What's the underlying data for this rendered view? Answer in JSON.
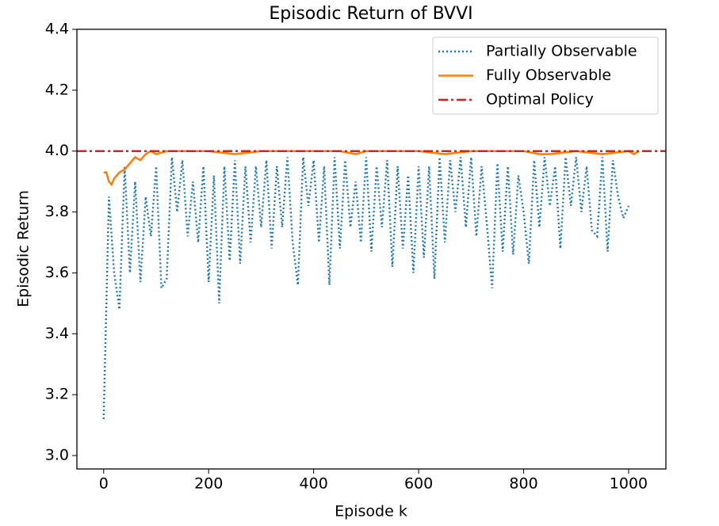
{
  "chart_data": {
    "type": "line",
    "title": "Episodic Return of BVVI",
    "xlabel": "Episode k",
    "ylabel": "Episodic Return",
    "xlim": [
      -51,
      1071
    ],
    "ylim": [
      2.956,
      4.4
    ],
    "xticks": [
      0,
      200,
      400,
      600,
      800,
      1000
    ],
    "yticks": [
      {
        "value": 3,
        "label": "3.0"
      },
      3.2,
      3.4,
      3.6,
      3.8,
      {
        "value": 4,
        "label": "4.0"
      },
      4.2,
      4.4
    ],
    "legend": "upper right",
    "series": [
      {
        "name": "Partially Observable",
        "color": "#1f77b4",
        "linestyle": "dotted",
        "x": [
          0,
          10,
          20,
          30,
          40,
          50,
          60,
          70,
          80,
          90,
          100,
          110,
          120,
          130,
          140,
          150,
          160,
          170,
          180,
          190,
          200,
          210,
          220,
          230,
          240,
          250,
          260,
          270,
          280,
          290,
          300,
          310,
          320,
          330,
          340,
          350,
          360,
          370,
          380,
          390,
          400,
          410,
          420,
          430,
          440,
          450,
          460,
          470,
          480,
          490,
          500,
          510,
          520,
          530,
          540,
          550,
          560,
          570,
          580,
          590,
          600,
          610,
          620,
          630,
          640,
          650,
          660,
          670,
          680,
          690,
          700,
          710,
          720,
          730,
          740,
          750,
          760,
          770,
          780,
          790,
          800,
          810,
          820,
          830,
          840,
          850,
          860,
          870,
          880,
          890,
          900,
          910,
          920,
          930,
          940,
          950,
          960,
          970,
          980,
          990,
          1000
        ],
        "values": [
          3.12,
          3.85,
          3.6,
          3.48,
          3.95,
          3.6,
          3.9,
          3.57,
          3.85,
          3.72,
          3.95,
          3.55,
          3.58,
          3.98,
          3.8,
          3.97,
          3.72,
          3.9,
          3.7,
          3.95,
          3.57,
          3.92,
          3.5,
          3.95,
          3.64,
          3.97,
          3.63,
          3.95,
          3.7,
          3.95,
          3.75,
          3.97,
          3.68,
          3.95,
          3.75,
          3.98,
          3.7,
          3.56,
          3.98,
          3.82,
          3.97,
          3.7,
          3.95,
          3.56,
          3.98,
          3.68,
          3.97,
          3.75,
          3.9,
          3.7,
          3.98,
          3.67,
          3.95,
          3.75,
          3.97,
          3.62,
          3.95,
          3.68,
          3.92,
          3.6,
          3.95,
          3.65,
          3.95,
          3.58,
          3.98,
          3.7,
          3.97,
          3.8,
          3.98,
          3.75,
          3.98,
          3.72,
          3.95,
          3.76,
          3.55,
          3.96,
          3.67,
          3.95,
          3.66,
          3.92,
          3.8,
          3.63,
          3.97,
          3.75,
          3.98,
          3.82,
          3.95,
          3.68,
          3.98,
          3.82,
          3.98,
          3.8,
          3.95,
          3.74,
          3.72,
          3.98,
          3.67,
          3.97,
          3.85,
          3.78,
          3.82
        ]
      },
      {
        "name": "Fully Observable",
        "color": "#ff7f0e",
        "linestyle": "solid",
        "x": [
          0,
          5,
          10,
          15,
          20,
          30,
          40,
          50,
          60,
          70,
          80,
          90,
          100,
          120,
          150,
          200,
          250,
          300,
          350,
          400,
          450,
          480,
          500,
          550,
          600,
          650,
          700,
          750,
          800,
          830,
          850,
          900,
          950,
          1000,
          1010,
          1020
        ],
        "values": [
          3.93,
          3.93,
          3.9,
          3.89,
          3.91,
          3.93,
          3.94,
          3.96,
          3.98,
          3.97,
          3.99,
          4.0,
          3.99,
          4.0,
          4.0,
          4.0,
          3.99,
          4.0,
          4.0,
          4.0,
          4.0,
          3.99,
          4.0,
          4.0,
          4.0,
          3.99,
          4.0,
          4.0,
          4.0,
          3.99,
          3.99,
          4.0,
          3.99,
          4.0,
          3.99,
          4.0
        ]
      },
      {
        "name": "Optimal Policy",
        "color": "#e41a1c",
        "linestyle": "dashdot",
        "y": 4
      }
    ]
  }
}
